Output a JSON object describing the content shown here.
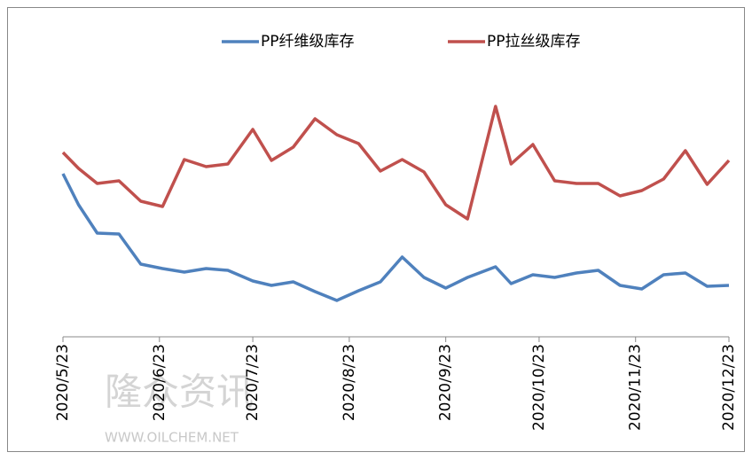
{
  "chart_data": {
    "type": "line",
    "x": [
      0,
      5,
      11,
      18,
      25,
      32,
      39,
      46,
      53,
      61,
      67,
      74,
      81,
      88,
      95,
      102,
      109,
      116,
      123,
      130,
      139,
      144,
      151,
      158,
      165,
      172,
      179,
      186,
      193,
      200,
      207,
      214
    ],
    "xlim": [
      0,
      214
    ],
    "xticks": [
      {
        "value": 0,
        "label": "2020/5/23"
      },
      {
        "value": 31,
        "label": "2020/6/23"
      },
      {
        "value": 61,
        "label": "2020/7/23"
      },
      {
        "value": 92,
        "label": "2020/8/23"
      },
      {
        "value": 123,
        "label": "2020/9/23"
      },
      {
        "value": 153,
        "label": "2020/10/23"
      },
      {
        "value": 184,
        "label": "2020/11/23"
      },
      {
        "value": 214,
        "label": "2020/12/23"
      }
    ],
    "ylim": [
      0,
      360
    ],
    "series": [
      {
        "name": "PP纤维级库存",
        "color": "#4f81bd",
        "values": [
          184,
          149,
          117,
          116,
          82,
          77,
          73,
          77,
          75,
          63,
          58,
          62,
          51,
          41,
          52,
          62,
          90,
          67,
          55,
          67,
          79,
          60,
          70,
          67,
          72,
          75,
          58,
          54,
          70,
          72,
          57,
          58
        ]
      },
      {
        "name": "PP拉丝级库存",
        "color": "#c0504d",
        "values": [
          208,
          190,
          173,
          176,
          153,
          147,
          200,
          192,
          195,
          234,
          199,
          214,
          246,
          228,
          218,
          187,
          200,
          186,
          149,
          133,
          260,
          195,
          217,
          176,
          173,
          173,
          159,
          165,
          178,
          210,
          172,
          199
        ]
      }
    ],
    "legend": "top",
    "watermark": {
      "title": "隆众资讯",
      "url": "WWW.OILCHEM.NET"
    }
  }
}
